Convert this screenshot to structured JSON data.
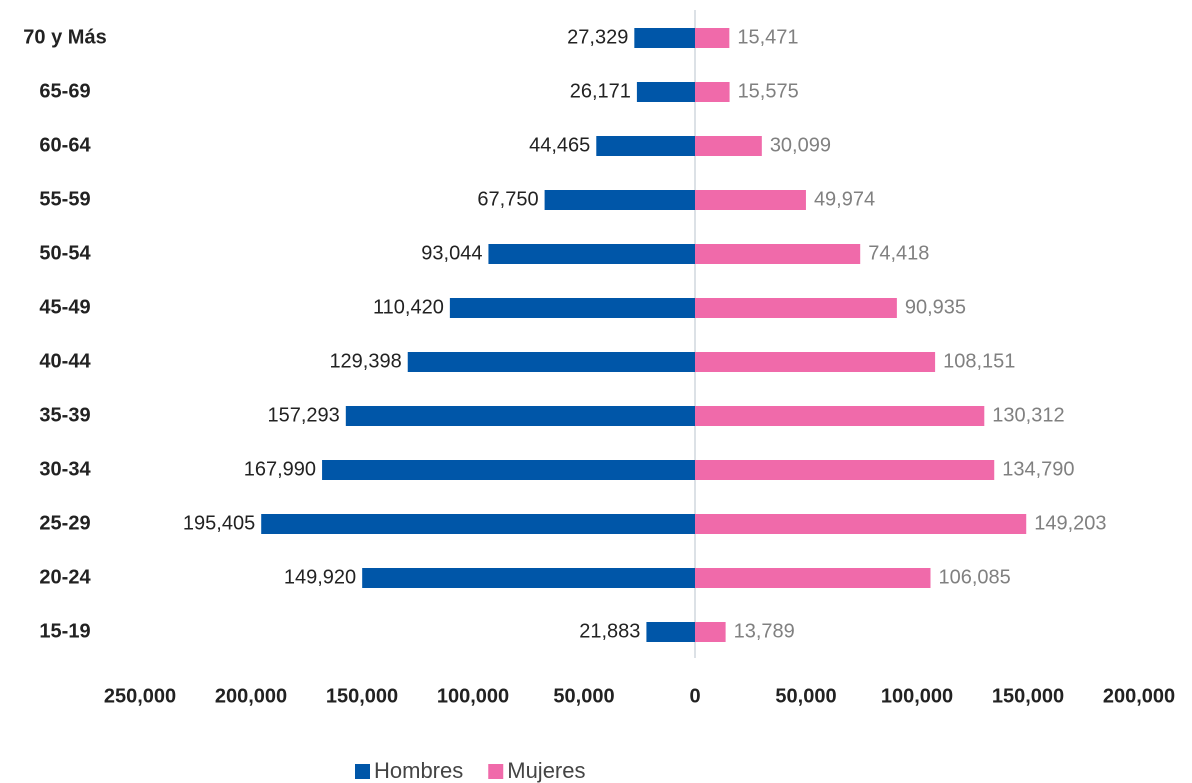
{
  "chart_data": {
    "type": "bar",
    "orientation": "horizontal",
    "categories": [
      "70 y Más",
      "65-69",
      "60-64",
      "55-59",
      "50-54",
      "45-49",
      "40-44",
      "35-39",
      "30-34",
      "25-29",
      "20-24",
      "15-19"
    ],
    "series": [
      {
        "name": "Hombres",
        "color": "#0056a8",
        "values": [
          -27329,
          -26171,
          -44465,
          -67750,
          -93044,
          -110420,
          -129398,
          -157293,
          -167990,
          -195405,
          -149920,
          -21883
        ],
        "value_labels": [
          "27,329",
          "26,171",
          "44,465",
          "67,750",
          "93,044",
          "110,420",
          "129,398",
          "157,293",
          "167,990",
          "195,405",
          "149,920",
          "21,883"
        ]
      },
      {
        "name": "Mujeres",
        "color": "#f06aaa",
        "values": [
          15471,
          15575,
          30099,
          49974,
          74418,
          90935,
          108151,
          130312,
          134790,
          149203,
          106085,
          13789
        ],
        "value_labels": [
          "15,471",
          "15,575",
          "30,099",
          "49,974",
          "74,418",
          "90,935",
          "108,151",
          "130,312",
          "134,790",
          "149,203",
          "106,085",
          "13,789"
        ]
      }
    ],
    "xlim": [
      -250000,
      200000
    ],
    "xticks": [
      {
        "value": -250000,
        "label": "250,000"
      },
      {
        "value": -200000,
        "label": "200,000"
      },
      {
        "value": -150000,
        "label": "150,000"
      },
      {
        "value": -100000,
        "label": "100,000"
      },
      {
        "value": -50000,
        "label": "50,000"
      },
      0,
      {
        "value": 50000,
        "label": "50,000"
      },
      {
        "value": 100000,
        "label": "100,000"
      },
      {
        "value": 150000,
        "label": "150,000"
      },
      {
        "value": 200000,
        "label": "200,000"
      }
    ],
    "legend": "bottom"
  }
}
